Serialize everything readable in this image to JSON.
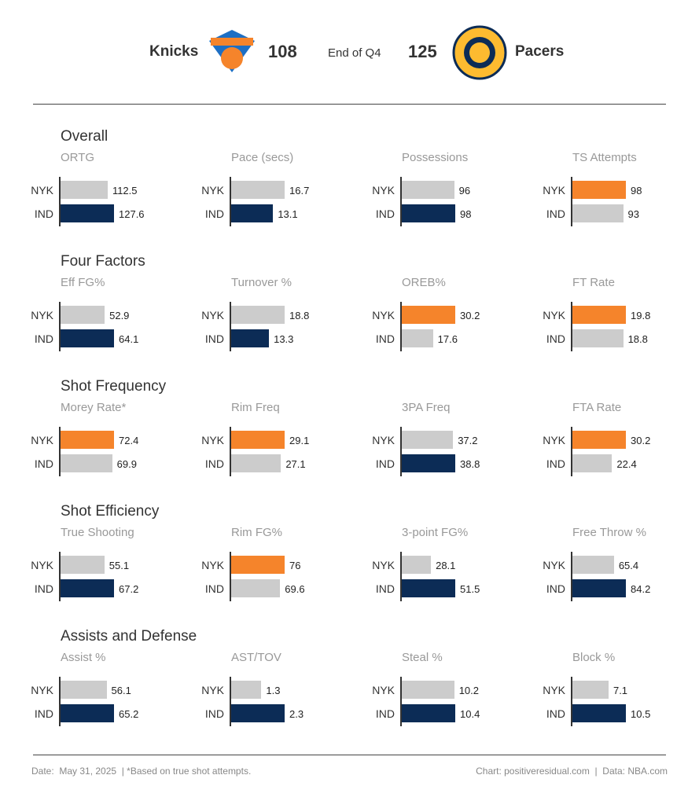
{
  "header": {
    "home": "Knicks",
    "home_score": 108,
    "status": "End of Q4",
    "away_score": 125,
    "away": "Pacers"
  },
  "teams": [
    "NYK",
    "IND"
  ],
  "sections": [
    {
      "title": "Overall",
      "metrics": [
        {
          "name": "ORTG",
          "values": [
            112.5,
            127.6
          ],
          "colors": [
            "#cccccc",
            "#0c2c56"
          ]
        },
        {
          "name": "Pace (secs)",
          "values": [
            16.7,
            13.1
          ],
          "colors": [
            "#cccccc",
            "#0c2c56"
          ]
        },
        {
          "name": "Possessions",
          "values": [
            96,
            98
          ],
          "colors": [
            "#cccccc",
            "#0c2c56"
          ]
        },
        {
          "name": "TS Attempts",
          "values": [
            98,
            93
          ],
          "colors": [
            "#f5842b",
            "#cccccc"
          ]
        }
      ]
    },
    {
      "title": "Four Factors",
      "metrics": [
        {
          "name": "Eff FG%",
          "values": [
            52.9,
            64.1
          ],
          "colors": [
            "#cccccc",
            "#0c2c56"
          ]
        },
        {
          "name": "Turnover %",
          "values": [
            18.8,
            13.3
          ],
          "colors": [
            "#cccccc",
            "#0c2c56"
          ]
        },
        {
          "name": "OREB%",
          "values": [
            30.2,
            17.6
          ],
          "colors": [
            "#f5842b",
            "#cccccc"
          ]
        },
        {
          "name": "FT Rate",
          "values": [
            19.8,
            18.8
          ],
          "colors": [
            "#f5842b",
            "#cccccc"
          ]
        }
      ]
    },
    {
      "title": "Shot Frequency",
      "metrics": [
        {
          "name": "Morey Rate*",
          "values": [
            72.4,
            69.9
          ],
          "colors": [
            "#f5842b",
            "#cccccc"
          ]
        },
        {
          "name": "Rim Freq",
          "values": [
            29.1,
            27.1
          ],
          "colors": [
            "#f5842b",
            "#cccccc"
          ]
        },
        {
          "name": "3PA Freq",
          "values": [
            37.2,
            38.8
          ],
          "colors": [
            "#cccccc",
            "#0c2c56"
          ]
        },
        {
          "name": "FTA Rate",
          "values": [
            30.2,
            22.4
          ],
          "colors": [
            "#f5842b",
            "#cccccc"
          ]
        }
      ]
    },
    {
      "title": "Shot Efficiency",
      "metrics": [
        {
          "name": "True Shooting",
          "values": [
            55.1,
            67.2
          ],
          "colors": [
            "#cccccc",
            "#0c2c56"
          ]
        },
        {
          "name": "Rim FG%",
          "values": [
            76,
            69.6
          ],
          "colors": [
            "#f5842b",
            "#cccccc"
          ]
        },
        {
          "name": "3-point FG%",
          "values": [
            28.1,
            51.5
          ],
          "colors": [
            "#cccccc",
            "#0c2c56"
          ]
        },
        {
          "name": "Free Throw %",
          "values": [
            65.4,
            84.2
          ],
          "colors": [
            "#cccccc",
            "#0c2c56"
          ]
        }
      ]
    },
    {
      "title": "Assists and Defense",
      "metrics": [
        {
          "name": "Assist %",
          "values": [
            56.1,
            65.2
          ],
          "colors": [
            "#cccccc",
            "#0c2c56"
          ]
        },
        {
          "name": "AST/TOV",
          "values": [
            1.3,
            2.3
          ],
          "colors": [
            "#cccccc",
            "#0c2c56"
          ]
        },
        {
          "name": "Steal %",
          "values": [
            10.2,
            10.4
          ],
          "colors": [
            "#cccccc",
            "#0c2c56"
          ]
        },
        {
          "name": "Block %",
          "values": [
            7.1,
            10.5
          ],
          "colors": [
            "#cccccc",
            "#0c2c56"
          ]
        }
      ]
    }
  ],
  "footer": {
    "left": "Date:  May 31, 2025  | *Based on true shot attempts.",
    "right": "Chart: positiveresidual.com  |  Data: NBA.com"
  }
}
